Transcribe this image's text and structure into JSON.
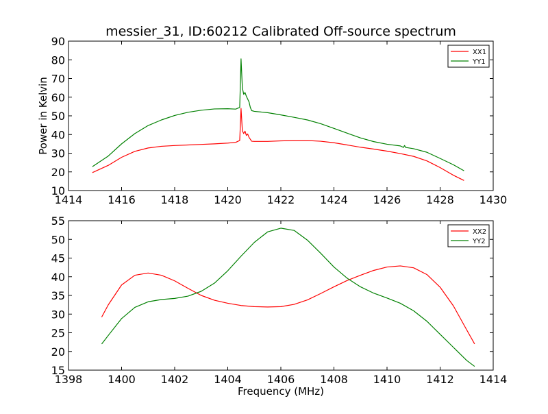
{
  "title": "messier_31, ID:60212 Calibrated Off-source spectrum",
  "colors": {
    "xx": "#ff0000",
    "yy": "#008000"
  },
  "chart_data": [
    {
      "type": "line",
      "ylabel": "Power in Kelvin",
      "xlabel": "",
      "xlim": [
        1414,
        1430
      ],
      "ylim": [
        10,
        90
      ],
      "xticks": [
        "1414",
        "1416",
        "1418",
        "1420",
        "1422",
        "1424",
        "1426",
        "1428",
        "1430"
      ],
      "yticks": [
        "10",
        "20",
        "30",
        "40",
        "50",
        "60",
        "70",
        "80",
        "90"
      ],
      "legend_position": "top-right",
      "series": [
        {
          "name": "XX1",
          "color": "#ff0000",
          "points": [
            [
              1414.9,
              19.6
            ],
            [
              1415.5,
              23.5
            ],
            [
              1416.0,
              27.8
            ],
            [
              1416.5,
              31.0
            ],
            [
              1417.0,
              32.8
            ],
            [
              1417.5,
              33.7
            ],
            [
              1418.0,
              34.1
            ],
            [
              1418.5,
              34.4
            ],
            [
              1419.0,
              34.7
            ],
            [
              1419.5,
              35.0
            ],
            [
              1420.0,
              35.4
            ],
            [
              1420.3,
              35.8
            ],
            [
              1420.45,
              36.8
            ],
            [
              1420.5,
              54.0
            ],
            [
              1420.55,
              42.0
            ],
            [
              1420.6,
              40.5
            ],
            [
              1420.65,
              41.8
            ],
            [
              1420.7,
              39.5
            ],
            [
              1420.75,
              40.3
            ],
            [
              1420.8,
              38.5
            ],
            [
              1420.9,
              36.4
            ],
            [
              1421.0,
              36.3
            ],
            [
              1421.5,
              36.3
            ],
            [
              1422.0,
              36.6
            ],
            [
              1422.5,
              36.8
            ],
            [
              1423.0,
              36.8
            ],
            [
              1423.5,
              36.4
            ],
            [
              1424.0,
              35.6
            ],
            [
              1424.5,
              34.4
            ],
            [
              1425.0,
              33.2
            ],
            [
              1425.5,
              32.2
            ],
            [
              1426.0,
              31.1
            ],
            [
              1426.5,
              29.8
            ],
            [
              1427.0,
              28.3
            ],
            [
              1427.5,
              25.9
            ],
            [
              1428.0,
              22.3
            ],
            [
              1428.5,
              18.2
            ],
            [
              1428.9,
              15.4
            ]
          ]
        },
        {
          "name": "YY1",
          "color": "#008000",
          "points": [
            [
              1414.9,
              22.8
            ],
            [
              1415.5,
              28.5
            ],
            [
              1416.0,
              35.0
            ],
            [
              1416.5,
              40.5
            ],
            [
              1417.0,
              44.8
            ],
            [
              1417.5,
              47.8
            ],
            [
              1418.0,
              50.2
            ],
            [
              1418.5,
              51.9
            ],
            [
              1419.0,
              53.0
            ],
            [
              1419.5,
              53.7
            ],
            [
              1420.0,
              53.8
            ],
            [
              1420.3,
              53.6
            ],
            [
              1420.45,
              54.5
            ],
            [
              1420.5,
              80.5
            ],
            [
              1420.55,
              65.0
            ],
            [
              1420.6,
              61.5
            ],
            [
              1420.65,
              62.5
            ],
            [
              1420.7,
              60.5
            ],
            [
              1420.75,
              59.0
            ],
            [
              1420.8,
              57.5
            ],
            [
              1420.85,
              54.5
            ],
            [
              1420.9,
              52.8
            ],
            [
              1421.0,
              52.4
            ],
            [
              1421.5,
              51.7
            ],
            [
              1422.0,
              50.5
            ],
            [
              1422.5,
              49.2
            ],
            [
              1423.0,
              47.8
            ],
            [
              1423.5,
              45.8
            ],
            [
              1424.0,
              43.3
            ],
            [
              1424.5,
              40.7
            ],
            [
              1425.0,
              38.2
            ],
            [
              1425.5,
              36.2
            ],
            [
              1426.0,
              34.8
            ],
            [
              1426.5,
              33.9
            ],
            [
              1426.62,
              33.1
            ],
            [
              1426.66,
              34.1
            ],
            [
              1426.7,
              33.1
            ],
            [
              1427.0,
              32.4
            ],
            [
              1427.5,
              30.5
            ],
            [
              1428.0,
              27.2
            ],
            [
              1428.5,
              23.8
            ],
            [
              1428.9,
              20.6
            ]
          ]
        }
      ]
    },
    {
      "type": "line",
      "xlabel": "Frequency (MHz)",
      "ylabel": "",
      "xlim": [
        1398,
        1414
      ],
      "ylim": [
        15,
        55
      ],
      "xticks": [
        "1398",
        "1400",
        "1402",
        "1404",
        "1406",
        "1408",
        "1410",
        "1412",
        "1414"
      ],
      "yticks": [
        "15",
        "20",
        "25",
        "30",
        "35",
        "40",
        "45",
        "50",
        "55"
      ],
      "legend_position": "top-right",
      "series": [
        {
          "name": "XX2",
          "color": "#ff0000",
          "points": [
            [
              1399.25,
              29.2
            ],
            [
              1399.5,
              32.5
            ],
            [
              1400.0,
              37.8
            ],
            [
              1400.5,
              40.4
            ],
            [
              1401.0,
              41.0
            ],
            [
              1401.5,
              40.4
            ],
            [
              1402.0,
              38.9
            ],
            [
              1402.5,
              36.9
            ],
            [
              1403.0,
              35.0
            ],
            [
              1403.5,
              33.7
            ],
            [
              1404.0,
              32.9
            ],
            [
              1404.5,
              32.3
            ],
            [
              1405.0,
              32.0
            ],
            [
              1405.5,
              31.9
            ],
            [
              1406.0,
              32.0
            ],
            [
              1406.5,
              32.6
            ],
            [
              1407.0,
              33.8
            ],
            [
              1407.5,
              35.5
            ],
            [
              1408.0,
              37.3
            ],
            [
              1408.5,
              39.0
            ],
            [
              1409.0,
              40.4
            ],
            [
              1409.5,
              41.7
            ],
            [
              1410.0,
              42.6
            ],
            [
              1410.5,
              42.9
            ],
            [
              1411.0,
              42.4
            ],
            [
              1411.5,
              40.6
            ],
            [
              1412.0,
              37.2
            ],
            [
              1412.5,
              32.2
            ],
            [
              1413.0,
              25.8
            ],
            [
              1413.3,
              22.0
            ]
          ]
        },
        {
          "name": "YY2",
          "color": "#008000",
          "points": [
            [
              1399.25,
              22.0
            ],
            [
              1399.5,
              24.3
            ],
            [
              1400.0,
              28.8
            ],
            [
              1400.5,
              31.8
            ],
            [
              1401.0,
              33.3
            ],
            [
              1401.5,
              33.9
            ],
            [
              1402.0,
              34.2
            ],
            [
              1402.5,
              34.8
            ],
            [
              1403.0,
              36.1
            ],
            [
              1403.5,
              38.3
            ],
            [
              1404.0,
              41.6
            ],
            [
              1404.5,
              45.5
            ],
            [
              1405.0,
              49.2
            ],
            [
              1405.5,
              52.0
            ],
            [
              1406.0,
              53.0
            ],
            [
              1406.5,
              52.4
            ],
            [
              1407.0,
              49.8
            ],
            [
              1407.5,
              46.3
            ],
            [
              1408.0,
              42.6
            ],
            [
              1408.5,
              39.6
            ],
            [
              1409.0,
              37.3
            ],
            [
              1409.5,
              35.6
            ],
            [
              1410.0,
              34.3
            ],
            [
              1410.5,
              32.9
            ],
            [
              1411.0,
              30.9
            ],
            [
              1411.5,
              28.1
            ],
            [
              1412.0,
              24.6
            ],
            [
              1412.5,
              21.1
            ],
            [
              1413.0,
              17.6
            ],
            [
              1413.3,
              16.0
            ]
          ]
        }
      ]
    }
  ]
}
